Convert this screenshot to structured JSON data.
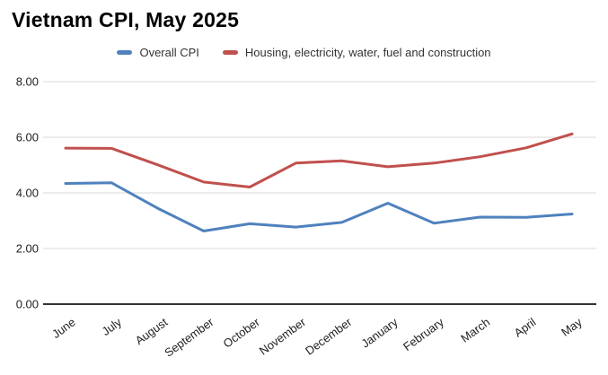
{
  "title": "Vietnam CPI, May 2025",
  "chart_data": {
    "type": "line",
    "title": "Vietnam CPI, May 2025",
    "categories": [
      "June",
      "July",
      "August",
      "September",
      "October",
      "November",
      "December",
      "January",
      "February",
      "March",
      "April",
      "May"
    ],
    "series": [
      {
        "name": "Overall CPI",
        "color": "#4f81bd",
        "values": [
          4.34,
          4.36,
          3.45,
          2.63,
          2.89,
          2.77,
          2.94,
          3.63,
          2.91,
          3.13,
          3.12,
          3.24
        ]
      },
      {
        "name": "Housing, electricity, water, fuel and construction",
        "color": "#c0504d",
        "values": [
          5.61,
          5.6,
          5.01,
          4.39,
          4.21,
          5.07,
          5.15,
          4.94,
          5.07,
          5.3,
          5.62,
          6.12
        ]
      }
    ],
    "ylim": [
      0,
      8
    ],
    "yticks": [
      {
        "value": 0,
        "label": "0.00"
      },
      {
        "value": 2,
        "label": "2.00"
      },
      {
        "value": 4,
        "label": "4.00"
      },
      {
        "value": 6,
        "label": "6.00"
      },
      {
        "value": 8,
        "label": "8.00"
      }
    ],
    "grid": true,
    "legend_position": "top",
    "xlabel": "",
    "ylabel": ""
  },
  "colors": {
    "grid_line": "#d9d9d9",
    "axis_line": "#333333",
    "tick_text": "#222222",
    "background": "#ffffff"
  }
}
